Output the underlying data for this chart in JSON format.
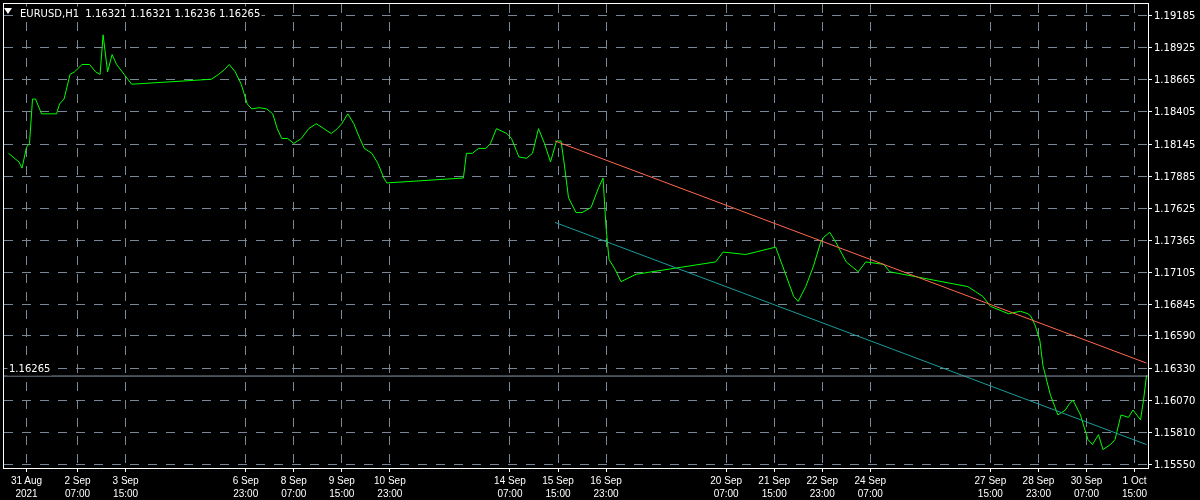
{
  "chart_data": {
    "type": "line",
    "title": "EURUSD,H1  1.16321 1.16321 1.16236 1.16265",
    "xlim": [
      "2021-08-31T06:00",
      "2021-10-01T23:59"
    ],
    "xticks": [
      {
        "value": "2021-08-31T21:00",
        "label": "31 Aug 2021"
      },
      {
        "value": "2021-09-02T07:00",
        "label": "2 Sep 07:00"
      },
      {
        "value": "2021-09-03T15:00",
        "label": "3 Sep 15:00"
      },
      {
        "value": "2021-09-06T23:00",
        "label": "6 Sep 23:00"
      },
      {
        "value": "2021-09-08T07:00",
        "label": "8 Sep 07:00"
      },
      {
        "value": "2021-09-09T15:00",
        "label": "9 Sep 15:00"
      },
      {
        "value": "2021-09-10T23:00",
        "label": "10 Sep 23:00"
      },
      {
        "value": "2021-09-14T07:00",
        "label": "14 Sep 07:00"
      },
      {
        "value": "2021-09-15T15:00",
        "label": "15 Sep 15:00"
      },
      {
        "value": "2021-09-16T23:00",
        "label": "16 Sep 23:00"
      },
      {
        "value": "2021-09-20T07:00",
        "label": "20 Sep 07:00"
      },
      {
        "value": "2021-09-21T15:00",
        "label": "21 Sep 15:00"
      },
      {
        "value": "2021-09-22T23:00",
        "label": "22 Sep 23:00"
      },
      {
        "value": "2021-09-24T07:00",
        "label": "24 Sep 07:00"
      },
      {
        "value": "2021-09-27T15:00",
        "label": "27 Sep 15:00"
      },
      {
        "value": "2021-09-28T23:00",
        "label": "28 Sep 23:00"
      },
      {
        "value": "2021-09-30T07:00",
        "label": "30 Sep 07:00"
      },
      {
        "value": "2021-10-01T15:00",
        "label": "1 Oct 15:00"
      }
    ],
    "ylim": [
      1.1552,
      1.1928
    ],
    "yticks": [
      1.19185,
      1.18925,
      1.18665,
      1.18405,
      1.18145,
      1.17885,
      1.17625,
      1.17365,
      1.17105,
      1.16845,
      {
        "value": 1.1659,
        "label": "1.16590"
      },
      {
        "value": 1.1633,
        "label": "1.16330"
      },
      {
        "value": 1.1607,
        "label": "1.16070"
      },
      {
        "value": 1.1581,
        "label": "1.15810"
      },
      {
        "value": 1.1555,
        "label": "1.15550"
      }
    ],
    "grid": true,
    "marker": "none",
    "line_style": "solid",
    "ref_lines": [
      {
        "axis": "y",
        "value": 1.16265,
        "label": "1.16265",
        "color": "#8a9aa8"
      }
    ],
    "series": [
      {
        "color": "#00ff00",
        "x": [
          "2021-08-31T09:00",
          "2021-08-31T16:00",
          "2021-08-31T18:00",
          "2021-08-31T21:00",
          "2021-08-31T23:00",
          "2021-09-01T01:00",
          "2021-09-01T03:00",
          "2021-09-01T07:00",
          "2021-09-01T12:00",
          "2021-09-01T17:00",
          "2021-09-01T19:00",
          "2021-09-01T22:00",
          "2021-09-02T02:00",
          "2021-09-02T05:00",
          "2021-09-02T10:00",
          "2021-09-02T15:00",
          "2021-09-02T19:00",
          "2021-09-02T22:00",
          "2021-09-03T00:00",
          "2021-09-03T03:00",
          "2021-09-03T06:00",
          "2021-09-03T09:00",
          "2021-09-03T14:00",
          "2021-09-03T19:00",
          "2021-09-06T00:00",
          "2021-09-06T05:00",
          "2021-09-06T09:00",
          "2021-09-06T12:00",
          "2021-09-06T16:00",
          "2021-09-06T20:00",
          "2021-09-07T00:00",
          "2021-09-07T03:00",
          "2021-09-07T08:00",
          "2021-09-07T13:00",
          "2021-09-07T17:00",
          "2021-09-07T20:00",
          "2021-09-07T23:00",
          "2021-09-08T03:00",
          "2021-09-08T07:00",
          "2021-09-08T12:00",
          "2021-09-08T17:00",
          "2021-09-08T22:00",
          "2021-09-09T03:00",
          "2021-09-09T08:00",
          "2021-09-09T12:00",
          "2021-09-09T15:00",
          "2021-09-09T19:00",
          "2021-09-09T23:00",
          "2021-09-10T03:00",
          "2021-09-10T06:00",
          "2021-09-10T11:00",
          "2021-09-10T15:00",
          "2021-09-10T19:00",
          "2021-09-10T21:00",
          "2021-09-13T00:00",
          "2021-09-13T02:00",
          "2021-09-13T06:00",
          "2021-09-13T10:00",
          "2021-09-13T15:00",
          "2021-09-13T18:00",
          "2021-09-13T22:00",
          "2021-09-14T05:00",
          "2021-09-14T08:00",
          "2021-09-14T13:00",
          "2021-09-14T18:00",
          "2021-09-14T22:00",
          "2021-09-15T02:00",
          "2021-09-15T06:00",
          "2021-09-15T10:00",
          "2021-09-15T14:00",
          "2021-09-15T17:00",
          "2021-09-15T19:00",
          "2021-09-15T22:00",
          "2021-09-16T03:00",
          "2021-09-16T07:00",
          "2021-09-16T13:00",
          "2021-09-16T18:00",
          "2021-09-16T21:00",
          "2021-09-16T23:00",
          "2021-09-17T01:00",
          "2021-09-17T05:00",
          "2021-09-17T09:00",
          "2021-09-17T19:00",
          "2021-09-20T00:00",
          "2021-09-20T05:00",
          "2021-09-20T20:00",
          "2021-09-21T16:00",
          "2021-09-22T04:00",
          "2021-09-22T07:00",
          "2021-09-22T12:00",
          "2021-09-22T17:00",
          "2021-09-22T22:00",
          "2021-09-23T00:00",
          "2021-09-23T04:00",
          "2021-09-23T08:00",
          "2021-09-23T15:00",
          "2021-09-23T23:00",
          "2021-09-24T04:00",
          "2021-09-24T16:00",
          "2021-09-24T20:00",
          "2021-09-27T00:00",
          "2021-09-27T05:00",
          "2021-09-27T10:00",
          "2021-09-27T15:00",
          "2021-09-28T03:00",
          "2021-09-28T11:00",
          "2021-09-28T16:00",
          "2021-09-28T18:00",
          "2021-09-28T21:00",
          "2021-09-29T00:00",
          "2021-09-29T02:00",
          "2021-09-29T07:00",
          "2021-09-29T12:00",
          "2021-09-29T17:00",
          "2021-09-29T19:00",
          "2021-09-29T22:00",
          "2021-09-30T03:00",
          "2021-09-30T08:00",
          "2021-09-30T11:00",
          "2021-09-30T15:00",
          "2021-09-30T18:00",
          "2021-09-30T23:00",
          "2021-10-01T02:00",
          "2021-10-01T06:00",
          "2021-10-01T11:00",
          "2021-10-01T14:00",
          "2021-10-01T19:00",
          "2021-10-01T21:00",
          "2021-10-01T23:00"
        ],
        "values": [
          1.1807,
          1.18,
          1.1795,
          1.1812,
          1.1815,
          1.1851,
          1.1851,
          1.1839,
          1.1839,
          1.1839,
          1.1847,
          1.1851,
          1.1871,
          1.1873,
          1.1879,
          1.1879,
          1.1873,
          1.1871,
          1.1903,
          1.1873,
          1.1887,
          1.1879,
          1.1871,
          1.1863,
          1.1867,
          1.1871,
          1.1875,
          1.1879,
          1.1873,
          1.1863,
          1.1847,
          1.1843,
          1.1844,
          1.1843,
          1.1839,
          1.1827,
          1.1819,
          1.1819,
          1.1815,
          1.1819,
          1.1827,
          1.1831,
          1.1827,
          1.1823,
          1.1827,
          1.1831,
          1.1839,
          1.1831,
          1.1819,
          1.1811,
          1.1807,
          1.1799,
          1.1787,
          1.1783,
          1.1787,
          1.1807,
          1.1807,
          1.1811,
          1.1811,
          1.1815,
          1.1827,
          1.1823,
          1.1819,
          1.1804,
          1.1803,
          1.1807,
          1.1827,
          1.1815,
          1.18,
          1.1817,
          1.1817,
          1.18,
          1.1771,
          1.1759,
          1.1759,
          1.1763,
          1.1779,
          1.1787,
          1.1747,
          1.1721,
          1.1713,
          1.1703,
          1.1709,
          1.1719,
          1.1727,
          1.1725,
          1.1731,
          1.1691,
          1.1687,
          1.1699,
          1.1715,
          1.1735,
          1.1739,
          1.1743,
          1.1735,
          1.1719,
          1.1711,
          1.1719,
          1.1717,
          1.1711,
          1.1699,
          1.1695,
          1.1691,
          1.1683,
          1.1677,
          1.1679,
          1.1677,
          1.1675,
          1.1667,
          1.1655,
          1.1635,
          1.1611,
          1.1595,
          1.1599,
          1.1603,
          1.1607,
          1.1595,
          1.1575,
          1.1571,
          1.1579,
          1.1567,
          1.1571,
          1.1575,
          1.1595,
          1.1593,
          1.1599,
          1.1591,
          1.1607,
          1.1627
        ]
      },
      {
        "color": "#ff6a4d",
        "x": [
          "2021-09-15T13:00",
          "2021-10-01T23:00"
        ],
        "values": [
          1.1817,
          1.1637
        ]
      },
      {
        "color": "#1a9c9c",
        "x": [
          "2021-09-15T13:00",
          "2021-10-01T23:00"
        ],
        "values": [
          1.1751,
          1.1571
        ]
      }
    ]
  }
}
